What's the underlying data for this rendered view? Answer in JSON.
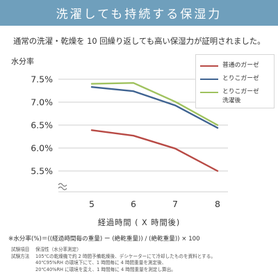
{
  "banner": {
    "title": "洗濯しても持続する保湿力",
    "bg_color": "#6f9fbc"
  },
  "subtitle": "通常の洗濯・乾燥を 10 回繰り返しても高い保湿力が証明されました。",
  "chart_data": {
    "type": "line",
    "ylabel": "水分率",
    "xlabel": "経過時間 ( X 時間後)",
    "x": [
      5,
      6,
      7,
      8
    ],
    "x_ticks": [
      "5",
      "6",
      "7",
      "8"
    ],
    "y_ticks": [
      "7.5%",
      "7.0%",
      "6.5%",
      "6.0%",
      "5.5%"
    ],
    "ylim": [
      5.5,
      7.5
    ],
    "axis_break": true,
    "grid": "horizontal",
    "legend_position": "top-right",
    "series": [
      {
        "name": "普通のガーゼ",
        "color": "#b84a45",
        "values": [
          6.39,
          6.27,
          5.99,
          5.5
        ]
      },
      {
        "name": "とりこガーゼ",
        "color": "#3f6391",
        "values": [
          7.33,
          7.24,
          6.93,
          6.44
        ]
      },
      {
        "name": "とりこガーゼ\n洗濯後",
        "color": "#9fc25e",
        "values": [
          7.4,
          7.42,
          7.01,
          6.5
        ]
      }
    ]
  },
  "formula": "※水分率(%)＝((経過時間毎の重量) ー (絶乾重量)) / (絶乾重量)) × 100",
  "notes": [
    {
      "key": "試験項目",
      "value": "保湿性（水分率測定）"
    },
    {
      "key": "試験方法",
      "value": "105℃の乾燥機で約 2 時間予備乾燥後、デシケーターにて冷却したものを資料とする。"
    },
    {
      "key": "",
      "value": "40℃95%RH の環境下にて、1 時間毎に 4 時間重量を測定後、"
    },
    {
      "key": "",
      "value": "20℃40%RH に環境を変え、1 時間毎に 4 時間重量を測定し算出。"
    }
  ]
}
